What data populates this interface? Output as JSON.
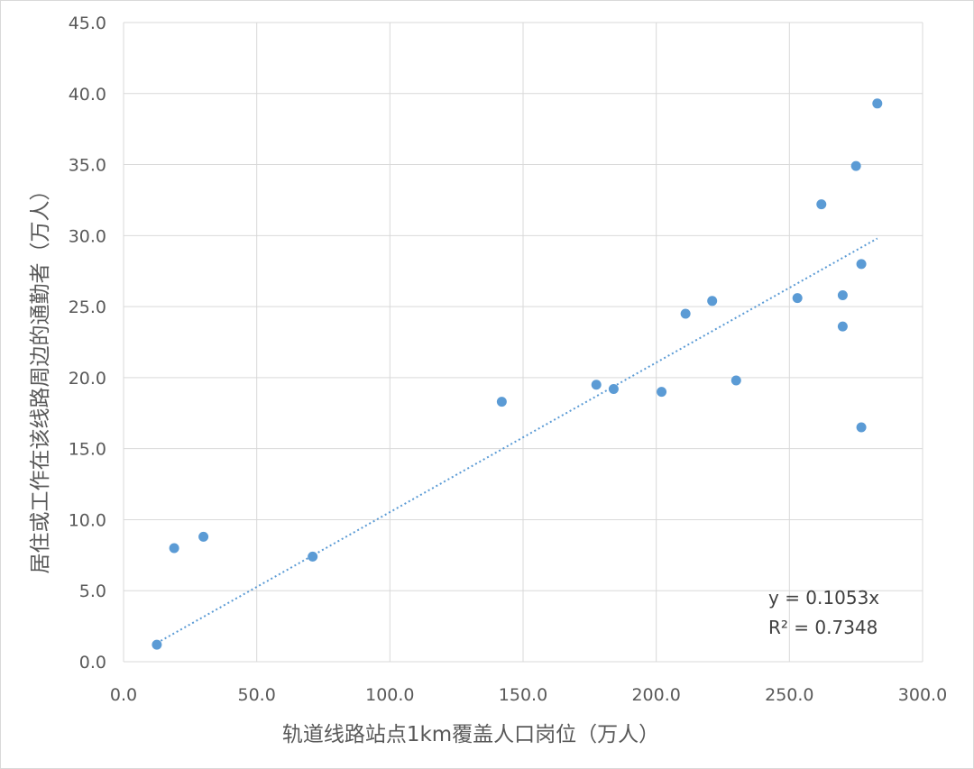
{
  "chart_data": {
    "type": "scatter",
    "title": "",
    "xlabel": "轨道线路站点1km覆盖人口岗位（万人）",
    "ylabel": "居住或工作在该线路周边的通勤者（万人）",
    "xlim": [
      0,
      300
    ],
    "ylim": [
      0,
      45
    ],
    "xticks": [
      "0.0",
      "50.0",
      "100.0",
      "150.0",
      "200.0",
      "250.0",
      "300.0"
    ],
    "yticks": [
      "0.0",
      "5.0",
      "10.0",
      "15.0",
      "20.0",
      "25.0",
      "30.0",
      "35.0",
      "40.0",
      "45.0"
    ],
    "grid": true,
    "points": [
      {
        "x": 12.5,
        "y": 1.2
      },
      {
        "x": 19,
        "y": 8.0
      },
      {
        "x": 30,
        "y": 8.8
      },
      {
        "x": 71,
        "y": 7.4
      },
      {
        "x": 142,
        "y": 18.3
      },
      {
        "x": 177.5,
        "y": 19.5
      },
      {
        "x": 184,
        "y": 19.2
      },
      {
        "x": 202,
        "y": 19.0
      },
      {
        "x": 211,
        "y": 24.5
      },
      {
        "x": 221,
        "y": 25.4
      },
      {
        "x": 230,
        "y": 19.8
      },
      {
        "x": 253,
        "y": 25.6
      },
      {
        "x": 262,
        "y": 32.2
      },
      {
        "x": 270,
        "y": 25.8
      },
      {
        "x": 270,
        "y": 23.6
      },
      {
        "x": 275,
        "y": 34.9
      },
      {
        "x": 277,
        "y": 28.0
      },
      {
        "x": 277,
        "y": 16.5
      },
      {
        "x": 283,
        "y": 39.3
      }
    ],
    "trendline": {
      "type": "linear",
      "slope": 0.1053,
      "x_range": [
        12.5,
        283
      ],
      "equation": "y = 0.1053x",
      "r_squared": "R² = 0.7348"
    },
    "marker_color": "#5b9bd5",
    "grid_color": "#d9d9d9"
  }
}
